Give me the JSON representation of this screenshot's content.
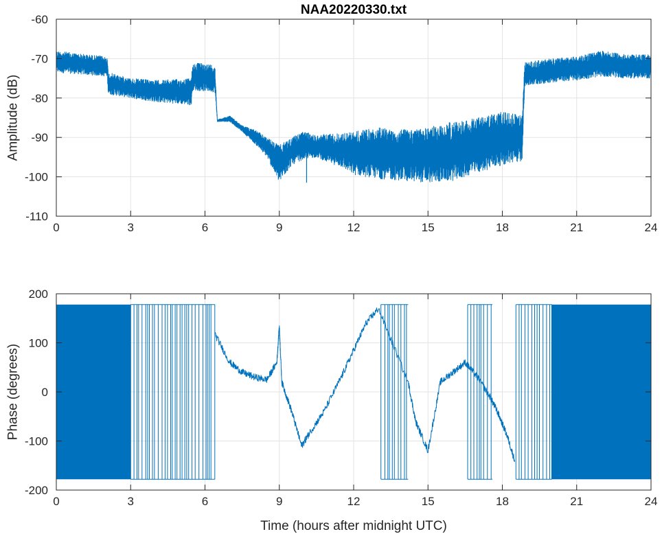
{
  "chart_data": [
    {
      "type": "line",
      "title": "NAA20220330.txt",
      "xlabel": "",
      "ylabel": "Amplitude (dB)",
      "xlim": [
        0,
        24
      ],
      "ylim": [
        -110,
        -60
      ],
      "xticks": [
        "0",
        "3",
        "6",
        "9",
        "12",
        "15",
        "18",
        "21",
        "24"
      ],
      "yticks": [
        "-60",
        "-70",
        "-80",
        "-90",
        "-100",
        "-110"
      ],
      "grid": true,
      "color": "#0072BD",
      "envelope": [
        {
          "x": 0.0,
          "lo": -73.5,
          "hi": -68.0
        },
        {
          "x": 1.0,
          "lo": -74.0,
          "hi": -68.8
        },
        {
          "x": 2.05,
          "lo": -74.5,
          "hi": -69.5
        },
        {
          "x": 2.1,
          "lo": -79.0,
          "hi": -73.5
        },
        {
          "x": 3.0,
          "lo": -80.0,
          "hi": -75.0
        },
        {
          "x": 4.0,
          "lo": -81.0,
          "hi": -75.5
        },
        {
          "x": 5.0,
          "lo": -81.5,
          "hi": -75.2
        },
        {
          "x": 5.45,
          "lo": -81.8,
          "hi": -75.0
        },
        {
          "x": 5.5,
          "lo": -78.0,
          "hi": -71.0
        },
        {
          "x": 6.4,
          "lo": -78.5,
          "hi": -71.5
        },
        {
          "x": 6.5,
          "lo": -86.0,
          "hi": -85.5
        },
        {
          "x": 7.0,
          "lo": -86.0,
          "hi": -84.5
        },
        {
          "x": 7.5,
          "lo": -88.5,
          "hi": -87.0
        },
        {
          "x": 8.0,
          "lo": -91.5,
          "hi": -88.0
        },
        {
          "x": 8.5,
          "lo": -95.0,
          "hi": -90.0
        },
        {
          "x": 9.0,
          "lo": -101.5,
          "hi": -92.0
        },
        {
          "x": 9.5,
          "lo": -97.0,
          "hi": -90.0
        },
        {
          "x": 10.0,
          "lo": -95.5,
          "hi": -88.5
        },
        {
          "x": 10.5,
          "lo": -95.0,
          "hi": -89.5
        },
        {
          "x": 11.0,
          "lo": -96.5,
          "hi": -89.0
        },
        {
          "x": 11.5,
          "lo": -97.5,
          "hi": -89.0
        },
        {
          "x": 12.0,
          "lo": -99.5,
          "hi": -88.5
        },
        {
          "x": 13.0,
          "lo": -100.5,
          "hi": -87.5
        },
        {
          "x": 14.0,
          "lo": -101.0,
          "hi": -88.0
        },
        {
          "x": 15.0,
          "lo": -101.5,
          "hi": -87.5
        },
        {
          "x": 16.0,
          "lo": -101.0,
          "hi": -86.0
        },
        {
          "x": 17.0,
          "lo": -99.0,
          "hi": -85.0
        },
        {
          "x": 18.0,
          "lo": -97.0,
          "hi": -83.5
        },
        {
          "x": 18.8,
          "lo": -96.0,
          "hi": -84.5
        },
        {
          "x": 18.9,
          "lo": -77.0,
          "hi": -71.0
        },
        {
          "x": 20.0,
          "lo": -76.0,
          "hi": -70.0
        },
        {
          "x": 21.0,
          "lo": -75.5,
          "hi": -69.5
        },
        {
          "x": 22.0,
          "lo": -74.5,
          "hi": -68.0
        },
        {
          "x": 23.0,
          "lo": -75.0,
          "hi": -69.0
        },
        {
          "x": 24.0,
          "lo": -75.0,
          "hi": -69.0
        }
      ]
    },
    {
      "type": "line",
      "title": "",
      "xlabel": "Time (hours after midnight UTC)",
      "ylabel": "Phase (degrees)",
      "xlim": [
        0,
        24
      ],
      "ylim": [
        -200,
        200
      ],
      "xticks": [
        "0",
        "3",
        "6",
        "9",
        "12",
        "15",
        "18",
        "21",
        "24"
      ],
      "yticks": [
        "200",
        "100",
        "0",
        "-100",
        "-200"
      ],
      "grid": true,
      "color": "#0072BD",
      "wrapped_intervals": [
        [
          0,
          3.0
        ],
        [
          20.0,
          24.0
        ]
      ],
      "sparse_wrap_intervals": [
        [
          3.0,
          6.4
        ],
        [
          13.1,
          14.2
        ],
        [
          16.6,
          17.6
        ],
        [
          18.55,
          20.0
        ]
      ],
      "trace": [
        {
          "x": 6.4,
          "y": 118
        },
        {
          "x": 7.0,
          "y": 60
        },
        {
          "x": 7.5,
          "y": 40
        },
        {
          "x": 8.0,
          "y": 30
        },
        {
          "x": 8.5,
          "y": 25
        },
        {
          "x": 8.9,
          "y": 60
        },
        {
          "x": 9.0,
          "y": 135
        },
        {
          "x": 9.1,
          "y": 20
        },
        {
          "x": 9.5,
          "y": -40
        },
        {
          "x": 9.9,
          "y": -110
        },
        {
          "x": 10.2,
          "y": -85
        },
        {
          "x": 10.8,
          "y": -40
        },
        {
          "x": 11.5,
          "y": 30
        },
        {
          "x": 12.0,
          "y": 85
        },
        {
          "x": 12.5,
          "y": 140
        },
        {
          "x": 13.0,
          "y": 170
        },
        {
          "x": 14.2,
          "y": 20
        },
        {
          "x": 14.5,
          "y": -60
        },
        {
          "x": 15.0,
          "y": -120
        },
        {
          "x": 15.5,
          "y": 20
        },
        {
          "x": 16.0,
          "y": 40
        },
        {
          "x": 16.5,
          "y": 60
        },
        {
          "x": 17.0,
          "y": 30
        },
        {
          "x": 17.5,
          "y": -10
        },
        {
          "x": 17.8,
          "y": -40
        },
        {
          "x": 18.2,
          "y": -90
        },
        {
          "x": 18.5,
          "y": -140
        }
      ]
    }
  ]
}
